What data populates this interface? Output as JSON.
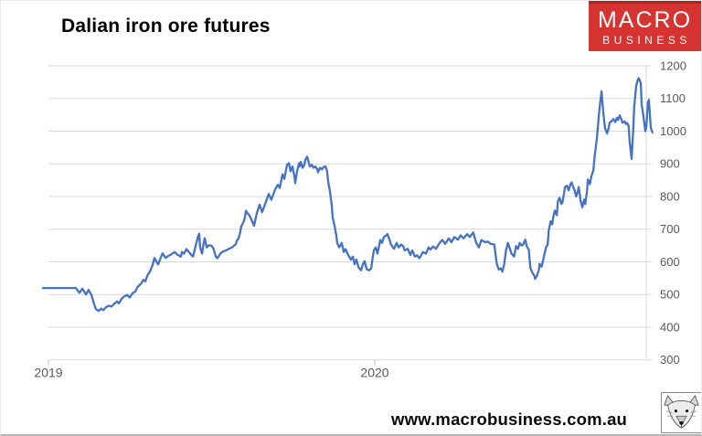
{
  "header": {
    "title": "Dalian iron ore futures"
  },
  "logo": {
    "line1": "MACRO",
    "line2": "BUSINESS",
    "bg_color": "#d63430",
    "text_color": "#ffffff"
  },
  "footer": {
    "url": "www.macrobusiness.com.au"
  },
  "icons": {
    "wolf": "wolf-head-logo"
  },
  "chart_data": {
    "type": "line",
    "title": "Dalian iron ore futures",
    "xlabel": "",
    "ylabel": "",
    "ylim": [
      300,
      1200
    ],
    "xlim": [
      2018.98,
      2020.86
    ],
    "grid": true,
    "legend_position": "none",
    "y_ticks": [
      1200,
      1100,
      1000,
      900,
      800,
      700,
      600,
      500,
      400,
      300
    ],
    "x_ticks": [
      {
        "t": 2019,
        "label": "2019"
      },
      {
        "t": 2020,
        "label": "2020"
      }
    ],
    "colors": {
      "line": "#4472C4",
      "grid": "#d9d9d9",
      "axis_text": "#595959"
    },
    "series": [
      {
        "name": "Dalian iron ore futures",
        "points": [
          [
            2018.983,
            520
          ],
          [
            2019.017,
            520
          ],
          [
            2019.05,
            520
          ],
          [
            2019.084,
            520
          ],
          [
            2019.095,
            505
          ],
          [
            2019.104,
            518
          ],
          [
            2019.115,
            500
          ],
          [
            2019.123,
            514
          ],
          [
            2019.132,
            498
          ],
          [
            2019.14,
            470
          ],
          [
            2019.146,
            455
          ],
          [
            2019.154,
            450
          ],
          [
            2019.162,
            457
          ],
          [
            2019.168,
            452
          ],
          [
            2019.176,
            461
          ],
          [
            2019.185,
            466
          ],
          [
            2019.193,
            463
          ],
          [
            2019.202,
            472
          ],
          [
            2019.21,
            479
          ],
          [
            2019.216,
            473
          ],
          [
            2019.224,
            487
          ],
          [
            2019.232,
            494
          ],
          [
            2019.241,
            499
          ],
          [
            2019.249,
            491
          ],
          [
            2019.258,
            504
          ],
          [
            2019.266,
            509
          ],
          [
            2019.274,
            524
          ],
          [
            2019.283,
            532
          ],
          [
            2019.291,
            545
          ],
          [
            2019.297,
            540
          ],
          [
            2019.303,
            558
          ],
          [
            2019.311,
            570
          ],
          [
            2019.319,
            590
          ],
          [
            2019.325,
            612
          ],
          [
            2019.336,
            592
          ],
          [
            2019.345,
            615
          ],
          [
            2019.35,
            626
          ],
          [
            2019.359,
            612
          ],
          [
            2019.367,
            618
          ],
          [
            2019.375,
            622
          ],
          [
            2019.387,
            630
          ],
          [
            2019.395,
            622
          ],
          [
            2019.406,
            616
          ],
          [
            2019.409,
            630
          ],
          [
            2019.415,
            625
          ],
          [
            2019.423,
            639
          ],
          [
            2019.437,
            622
          ],
          [
            2019.443,
            616
          ],
          [
            2019.457,
            672
          ],
          [
            2019.462,
            686
          ],
          [
            2019.465,
            644
          ],
          [
            2019.471,
            625
          ],
          [
            2019.476,
            658
          ],
          [
            2019.479,
            672
          ],
          [
            2019.485,
            644
          ],
          [
            2019.49,
            650
          ],
          [
            2019.499,
            650
          ],
          [
            2019.504,
            644
          ],
          [
            2019.507,
            636
          ],
          [
            2019.513,
            616
          ],
          [
            2019.518,
            611
          ],
          [
            2019.527,
            625
          ],
          [
            2019.532,
            630
          ],
          [
            2019.546,
            636
          ],
          [
            2019.555,
            641
          ],
          [
            2019.563,
            644
          ],
          [
            2019.569,
            650
          ],
          [
            2019.574,
            653
          ],
          [
            2019.577,
            664
          ],
          [
            2019.583,
            672
          ],
          [
            2019.588,
            692
          ],
          [
            2019.591,
            709
          ],
          [
            2019.597,
            720
          ],
          [
            2019.602,
            735
          ],
          [
            2019.605,
            756
          ],
          [
            2019.611,
            748
          ],
          [
            2019.616,
            742
          ],
          [
            2019.625,
            723
          ],
          [
            2019.63,
            710
          ],
          [
            2019.639,
            750
          ],
          [
            2019.647,
            775
          ],
          [
            2019.655,
            752
          ],
          [
            2019.667,
            785
          ],
          [
            2019.675,
            808
          ],
          [
            2019.683,
            790
          ],
          [
            2019.695,
            822
          ],
          [
            2019.703,
            836
          ],
          [
            2019.709,
            826
          ],
          [
            2019.717,
            868
          ],
          [
            2019.723,
            854
          ],
          [
            2019.731,
            897
          ],
          [
            2019.737,
            902
          ],
          [
            2019.742,
            877
          ],
          [
            2019.748,
            892
          ],
          [
            2019.754,
            860
          ],
          [
            2019.756,
            841
          ],
          [
            2019.762,
            877
          ],
          [
            2019.768,
            902
          ],
          [
            2019.77,
            892
          ],
          [
            2019.773,
            906
          ],
          [
            2019.779,
            888
          ],
          [
            2019.784,
            897
          ],
          [
            2019.787,
            912
          ],
          [
            2019.793,
            922
          ],
          [
            2019.798,
            902
          ],
          [
            2019.801,
            892
          ],
          [
            2019.807,
            897
          ],
          [
            2019.812,
            888
          ],
          [
            2019.818,
            892
          ],
          [
            2019.824,
            883
          ],
          [
            2019.826,
            874
          ],
          [
            2019.832,
            888
          ],
          [
            2019.838,
            883
          ],
          [
            2019.843,
            890
          ],
          [
            2019.849,
            892
          ],
          [
            2019.854,
            877
          ],
          [
            2019.857,
            849
          ],
          [
            2019.863,
            812
          ],
          [
            2019.868,
            775
          ],
          [
            2019.871,
            737
          ],
          [
            2019.877,
            709
          ],
          [
            2019.882,
            681
          ],
          [
            2019.885,
            658
          ],
          [
            2019.891,
            644
          ],
          [
            2019.899,
            658
          ],
          [
            2019.905,
            630
          ],
          [
            2019.91,
            639
          ],
          [
            2019.919,
            620
          ],
          [
            2019.927,
            607
          ],
          [
            2019.933,
            616
          ],
          [
            2019.938,
            593
          ],
          [
            2019.944,
            607
          ],
          [
            2019.95,
            583
          ],
          [
            2019.958,
            574
          ],
          [
            2019.964,
            593
          ],
          [
            2019.969,
            602
          ],
          [
            2019.975,
            578
          ],
          [
            2019.983,
            574
          ],
          [
            2019.989,
            580
          ],
          [
            2019.997,
            635
          ],
          [
            2020.003,
            644
          ],
          [
            2020.008,
            625
          ],
          [
            2020.017,
            667
          ],
          [
            2020.022,
            658
          ],
          [
            2020.028,
            676
          ],
          [
            2020.034,
            680
          ],
          [
            2020.039,
            685
          ],
          [
            2020.045,
            668
          ],
          [
            2020.05,
            653
          ],
          [
            2020.059,
            640
          ],
          [
            2020.067,
            658
          ],
          [
            2020.073,
            644
          ],
          [
            2020.081,
            653
          ],
          [
            2020.087,
            648
          ],
          [
            2020.092,
            635
          ],
          [
            2020.101,
            640
          ],
          [
            2020.109,
            621
          ],
          [
            2020.115,
            635
          ],
          [
            2020.123,
            616
          ],
          [
            2020.129,
            620
          ],
          [
            2020.137,
            611
          ],
          [
            2020.143,
            622
          ],
          [
            2020.148,
            630
          ],
          [
            2020.157,
            625
          ],
          [
            2020.165,
            644
          ],
          [
            2020.171,
            638
          ],
          [
            2020.179,
            647
          ],
          [
            2020.188,
            640
          ],
          [
            2020.199,
            658
          ],
          [
            2020.207,
            667
          ],
          [
            2020.216,
            655
          ],
          [
            2020.227,
            672
          ],
          [
            2020.235,
            660
          ],
          [
            2020.244,
            676
          ],
          [
            2020.255,
            668
          ],
          [
            2020.263,
            681
          ],
          [
            2020.272,
            672
          ],
          [
            2020.283,
            685
          ],
          [
            2020.291,
            676
          ],
          [
            2020.302,
            690
          ],
          [
            2020.311,
            658
          ],
          [
            2020.319,
            644
          ],
          [
            2020.327,
            667
          ],
          [
            2020.338,
            660
          ],
          [
            2020.347,
            662
          ],
          [
            2020.355,
            655
          ],
          [
            2020.366,
            653
          ],
          [
            2020.374,
            594
          ],
          [
            2020.38,
            576
          ],
          [
            2020.386,
            580
          ],
          [
            2020.391,
            570
          ],
          [
            2020.397,
            594
          ],
          [
            2020.402,
            634
          ],
          [
            2020.408,
            658
          ],
          [
            2020.413,
            644
          ],
          [
            2020.419,
            625
          ],
          [
            2020.425,
            618
          ],
          [
            2020.427,
            616
          ],
          [
            2020.433,
            648
          ],
          [
            2020.439,
            640
          ],
          [
            2020.444,
            658
          ],
          [
            2020.45,
            650
          ],
          [
            2020.455,
            653
          ],
          [
            2020.461,
            668
          ],
          [
            2020.466,
            647
          ],
          [
            2020.472,
            637
          ],
          [
            2020.477,
            580
          ],
          [
            2020.483,
            567
          ],
          [
            2020.489,
            557
          ],
          [
            2020.491,
            548
          ],
          [
            2020.497,
            557
          ],
          [
            2020.503,
            576
          ],
          [
            2020.505,
            594
          ],
          [
            2020.511,
            585
          ],
          [
            2020.517,
            609
          ],
          [
            2020.519,
            620
          ],
          [
            2020.525,
            644
          ],
          [
            2020.53,
            653
          ],
          [
            2020.533,
            695
          ],
          [
            2020.539,
            724
          ],
          [
            2020.544,
            715
          ],
          [
            2020.547,
            738
          ],
          [
            2020.552,
            757
          ],
          [
            2020.558,
            743
          ],
          [
            2020.561,
            785
          ],
          [
            2020.566,
            796
          ],
          [
            2020.572,
            777
          ],
          [
            2020.575,
            782
          ],
          [
            2020.58,
            810
          ],
          [
            2020.583,
            829
          ],
          [
            2020.589,
            833
          ],
          [
            2020.594,
            819
          ],
          [
            2020.6,
            838
          ],
          [
            2020.603,
            843
          ],
          [
            2020.608,
            829
          ],
          [
            2020.614,
            814
          ],
          [
            2020.617,
            800
          ],
          [
            2020.622,
            815
          ],
          [
            2020.625,
            829
          ],
          [
            2020.631,
            786
          ],
          [
            2020.636,
            767
          ],
          [
            2020.642,
            791
          ],
          [
            2020.645,
            777
          ],
          [
            2020.65,
            814
          ],
          [
            2020.653,
            852
          ],
          [
            2020.659,
            838
          ],
          [
            2020.664,
            862
          ],
          [
            2020.67,
            880
          ],
          [
            2020.673,
            917
          ],
          [
            2020.681,
            980
          ],
          [
            2020.686,
            1040
          ],
          [
            2020.689,
            1073
          ],
          [
            2020.695,
            1122
          ],
          [
            2020.7,
            1060
          ],
          [
            2020.706,
            1008
          ],
          [
            2020.712,
            993
          ],
          [
            2020.717,
            1011
          ],
          [
            2020.72,
            1026
          ],
          [
            2020.725,
            1030
          ],
          [
            2020.731,
            1037
          ],
          [
            2020.737,
            1028
          ],
          [
            2020.742,
            1041
          ],
          [
            2020.745,
            1034
          ],
          [
            2020.751,
            1048
          ],
          [
            2020.756,
            1035
          ],
          [
            2020.759,
            1026
          ],
          [
            2020.765,
            1030
          ],
          [
            2020.77,
            1022
          ],
          [
            2020.773,
            1025
          ],
          [
            2020.778,
            1017
          ],
          [
            2020.781,
            970
          ],
          [
            2020.787,
            915
          ],
          [
            2020.792,
            1000
          ],
          [
            2020.795,
            1073
          ],
          [
            2020.801,
            1138
          ],
          [
            2020.806,
            1157
          ],
          [
            2020.809,
            1162
          ],
          [
            2020.815,
            1148
          ],
          [
            2020.818,
            1082
          ],
          [
            2020.823,
            1048
          ],
          [
            2020.829,
            1000
          ],
          [
            2020.832,
            1010
          ],
          [
            2020.837,
            1087
          ],
          [
            2020.84,
            1096
          ],
          [
            2020.846,
            1010
          ],
          [
            2020.851,
            996
          ]
        ]
      }
    ]
  }
}
